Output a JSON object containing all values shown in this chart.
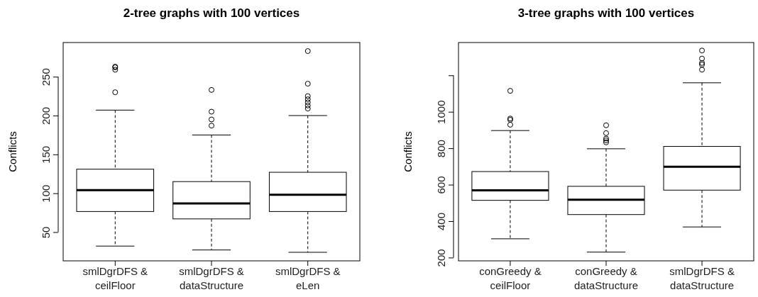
{
  "chart_data": [
    {
      "type": "box",
      "title": "2-tree graphs with 100 vertices",
      "ylabel": "Conflicts",
      "categories": [
        "smlDgrDFS &\nceilFloor",
        "smlDgrDFS &\ndataStructure",
        "smlDgrDFS &\neLen"
      ],
      "boxes": [
        {
          "low": 32,
          "q1": 76.5,
          "median": 104,
          "q3": 131,
          "high": 207,
          "outliers": [
            263,
            262,
            259,
            230
          ]
        },
        {
          "low": 27,
          "q1": 67,
          "median": 87,
          "q3": 115,
          "high": 175,
          "outliers": [
            233,
            205,
            195,
            187
          ]
        },
        {
          "low": 24,
          "q1": 76.5,
          "median": 98,
          "q3": 127,
          "high": 200,
          "outliers": [
            283,
            241,
            225,
            221,
            217,
            213,
            209
          ]
        }
      ],
      "ylim": [
        13,
        294
      ],
      "yticks": [
        50,
        100,
        150,
        200,
        250
      ],
      "grid": false
    },
    {
      "type": "box",
      "title": "3-tree graphs with 100 vertices",
      "ylabel": "Conflicts",
      "categories": [
        "conGreedy &\nceilFloor",
        "conGreedy &\ndataStructure",
        "smlDgrDFS &\ndataStructure"
      ],
      "boxes": [
        {
          "low": 303,
          "q1": 514,
          "median": 569,
          "q3": 672,
          "high": 897,
          "outliers": [
            1115,
            963,
            956,
            929
          ]
        },
        {
          "low": 230,
          "q1": 436,
          "median": 517,
          "q3": 591,
          "high": 797,
          "outliers": [
            926,
            883,
            853,
            843,
            832
          ]
        },
        {
          "low": 368,
          "q1": 570,
          "median": 698,
          "q3": 810,
          "high": 1159,
          "outliers": [
            1336,
            1292,
            1268,
            1259,
            1231
          ]
        }
      ],
      "ylim": [
        182,
        1380
      ],
      "yticks": [
        200,
        400,
        600,
        800,
        1000,
        {
          "value": 1200,
          "label": null
        }
      ],
      "grid": false
    }
  ]
}
